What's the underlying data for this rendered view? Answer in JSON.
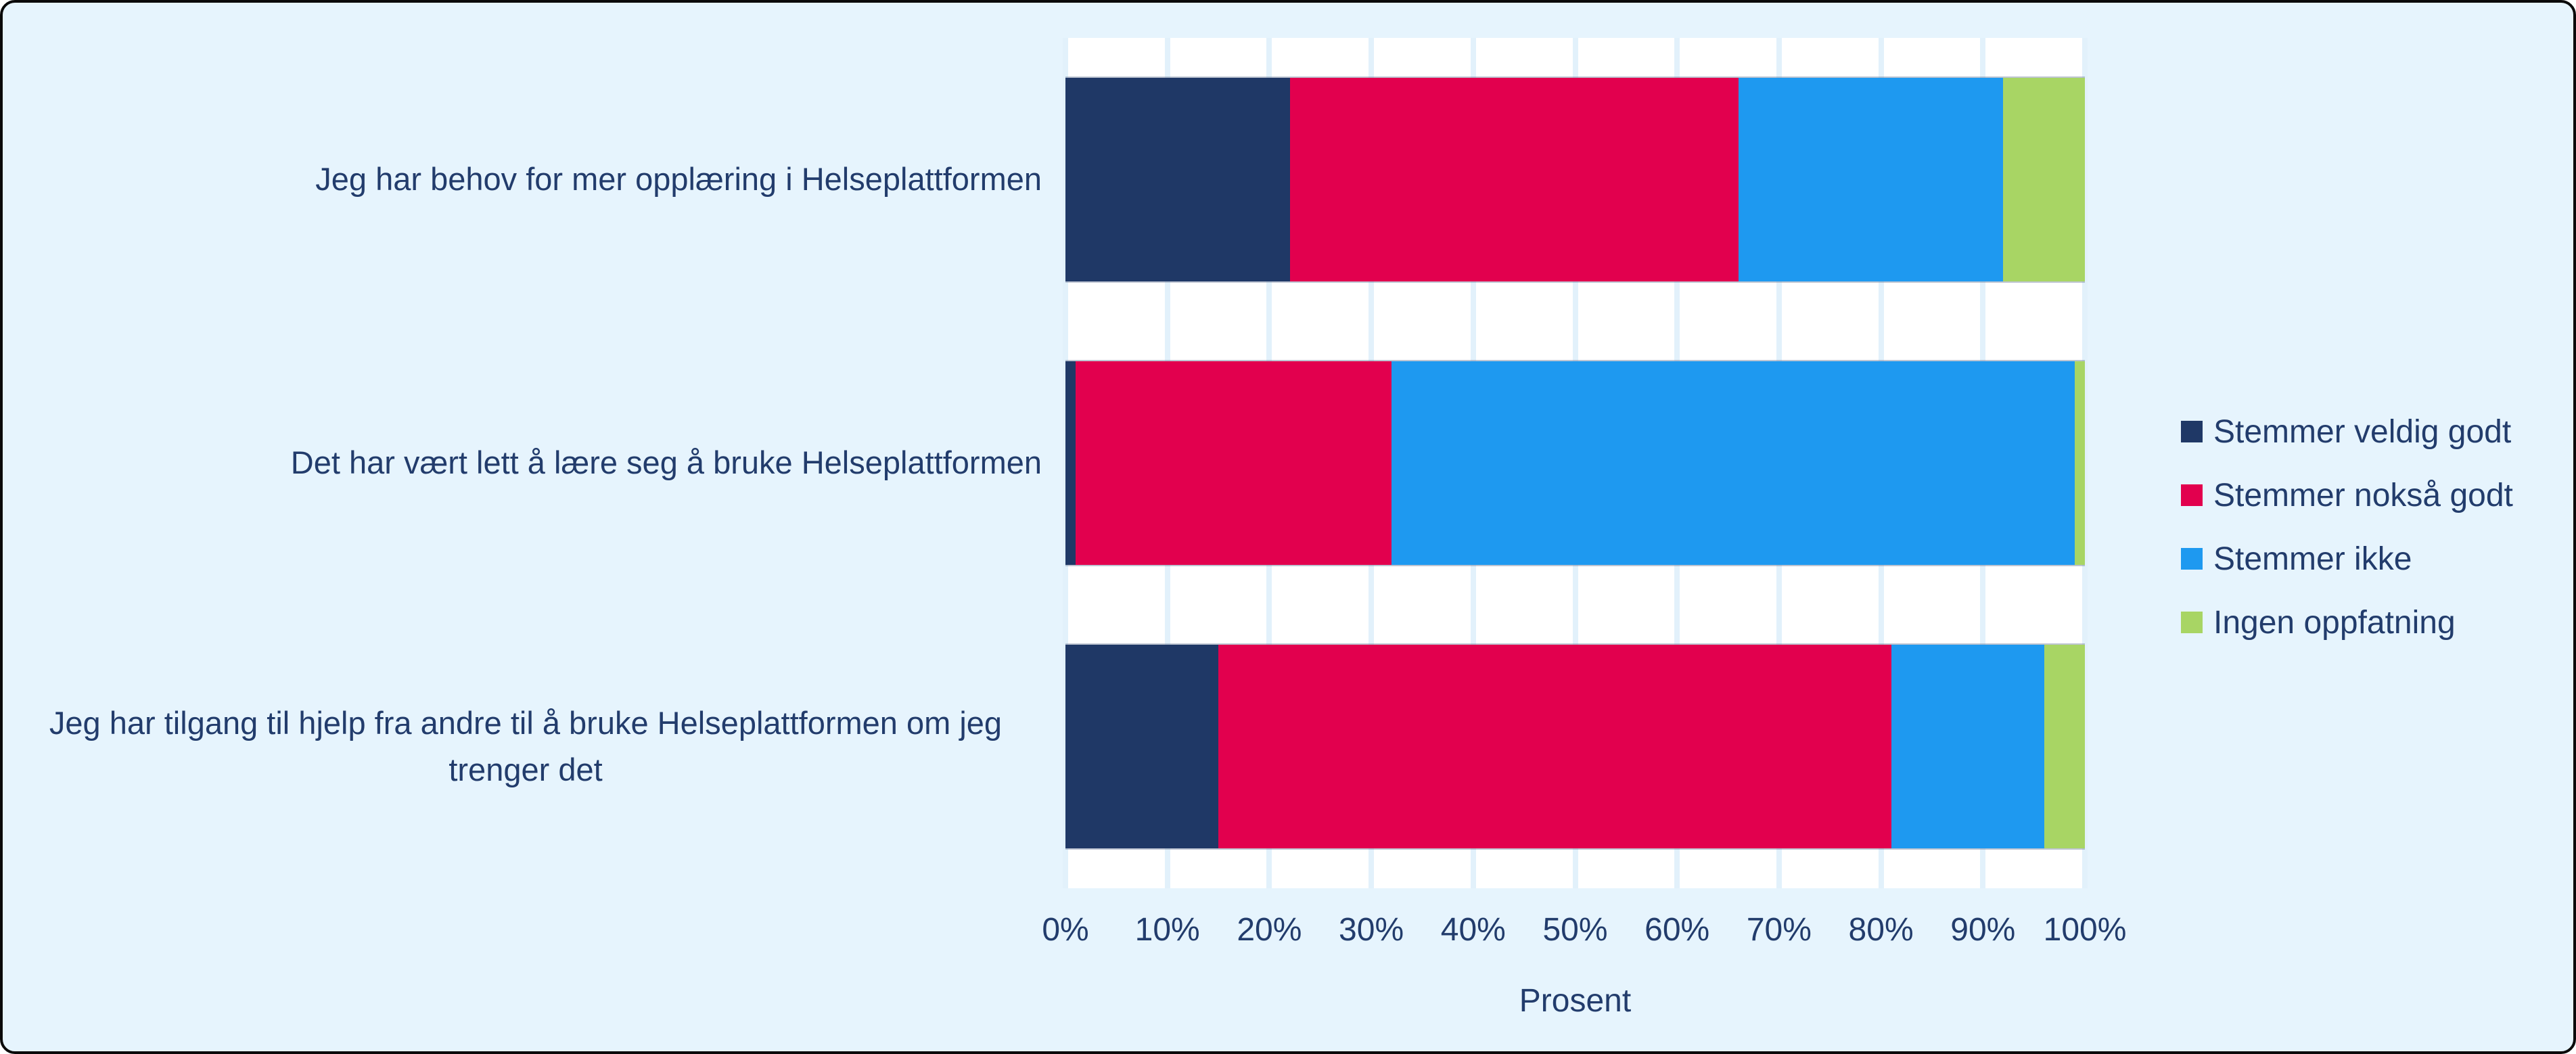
{
  "frame": {
    "background_color": "#e6f4fd",
    "border_color": "#0a0a0a",
    "plot_background_color": "#ffffff",
    "gridline_color": "#e2f1fb",
    "text_color": "#223c6c"
  },
  "chart_data": {
    "type": "bar",
    "orientation": "horizontal",
    "stacked": true,
    "title": "",
    "xlabel": "Prosent",
    "ylabel": "",
    "xlim": [
      0,
      100
    ],
    "x_ticks": [
      "0%",
      "10%",
      "20%",
      "30%",
      "40%",
      "50%",
      "60%",
      "70%",
      "80%",
      "90%",
      "100%"
    ],
    "grid": "vertical",
    "legend_position": "right",
    "categories": [
      "Jeg har behov for mer opplæring i Helseplattformen",
      "Det har vært lett å lære seg å bruke Helseplattformen",
      "Jeg har tilgang til hjelp fra andre til å bruke Helseplattformen om jeg trenger det"
    ],
    "series": [
      {
        "name": "Stemmer veldig godt",
        "color": "#1f3866",
        "values": [
          22,
          1,
          15
        ]
      },
      {
        "name": "Stemmer nokså godt",
        "color": "#e2004e",
        "values": [
          44,
          31,
          66
        ]
      },
      {
        "name": "Stemmer ikke",
        "color": "#1e99f0",
        "values": [
          26,
          67,
          15
        ]
      },
      {
        "name": "Ingen oppfatning",
        "color": "#a8d564",
        "values": [
          8,
          1,
          4
        ]
      }
    ]
  }
}
